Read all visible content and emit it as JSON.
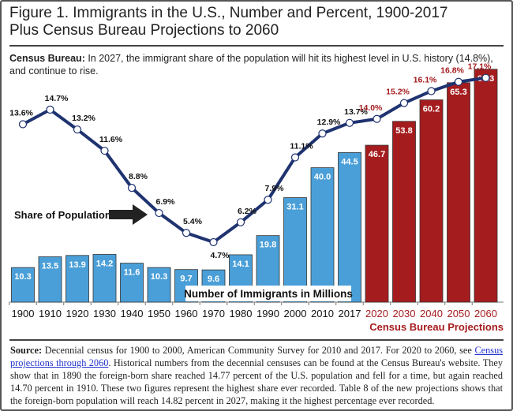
{
  "title_line1": "Figure 1. Immigrants in the U.S., Number and Percent, 1900-2017",
  "title_line2": "Plus Census Bureau Projections to 2060",
  "note_label": "Census Bureau:",
  "note_text": " In 2027, the immigrant share of the population will hit its highest level in U.S. history (14.8%), and continue to rise.",
  "source": {
    "label": "Source:",
    "text1": " Decennial census for 1900 to 2000, American Community Survey for 2010 and 2017. For 2020 to 2060, see ",
    "link": "Census projections through 2060",
    "text2": ". Historical numbers from the decennial censuses can be found at the Census Bureau's website. They show that in 1890 the foreign-born share reached 14.77 percent of the U.S. population and fell for a time, but again reached 14.70 percent in 1910. These two figures represent the highest share ever recorded. Table 8 of the new projections shows that the foreign-born population will reach 14.82 percent in 2027, making it the highest percentage ever recorded."
  },
  "chart_data": {
    "type": "bar+line",
    "categories": [
      "1900",
      "1910",
      "1920",
      "1930",
      "1940",
      "1950",
      "1960",
      "1970",
      "1980",
      "1990",
      "2000",
      "2010",
      "2017",
      "2020",
      "2030",
      "2040",
      "2050",
      "2060"
    ],
    "projected_from_index": 13,
    "series": [
      {
        "name": "Number of Immigrants in Millions",
        "type": "bar",
        "values": [
          10.3,
          13.5,
          13.9,
          14.2,
          11.6,
          10.3,
          9.7,
          9.6,
          14.1,
          19.8,
          31.1,
          40.0,
          44.5,
          46.7,
          53.8,
          60.2,
          65.3,
          69.3
        ],
        "labels": [
          "10.3",
          "13.5",
          "13.9",
          "14.2",
          "11.6",
          "10.3",
          "9.7",
          "9.6",
          "14.1",
          "19.8",
          "31.1",
          "40.0",
          "44.5",
          "46.7",
          "53.8",
          "60.2",
          "65.3",
          "69.3"
        ]
      },
      {
        "name": "Share of Population",
        "type": "line",
        "values": [
          13.6,
          14.7,
          13.2,
          11.6,
          8.8,
          6.9,
          5.4,
          4.7,
          6.2,
          7.9,
          11.1,
          12.9,
          13.7,
          14.0,
          15.2,
          16.1,
          16.8,
          17.1
        ],
        "labels": [
          "13.6%",
          "14.7%",
          "13.2%",
          "11.6%",
          "8.8%",
          "6.9%",
          "5.4%",
          "4.7%",
          "6.2%",
          "7.9%",
          "11.1%",
          "12.9%",
          "13.7%",
          "14.0%",
          "15.2%",
          "16.1%",
          "16.8%",
          "17.1%"
        ]
      }
    ],
    "projection_label": "Census Bureau Projections",
    "colors": {
      "historical_bar": "#4a9fd8",
      "projected_bar": "#a51c1e",
      "line": "#1f3370",
      "projected_text": "#a51c1e"
    }
  }
}
